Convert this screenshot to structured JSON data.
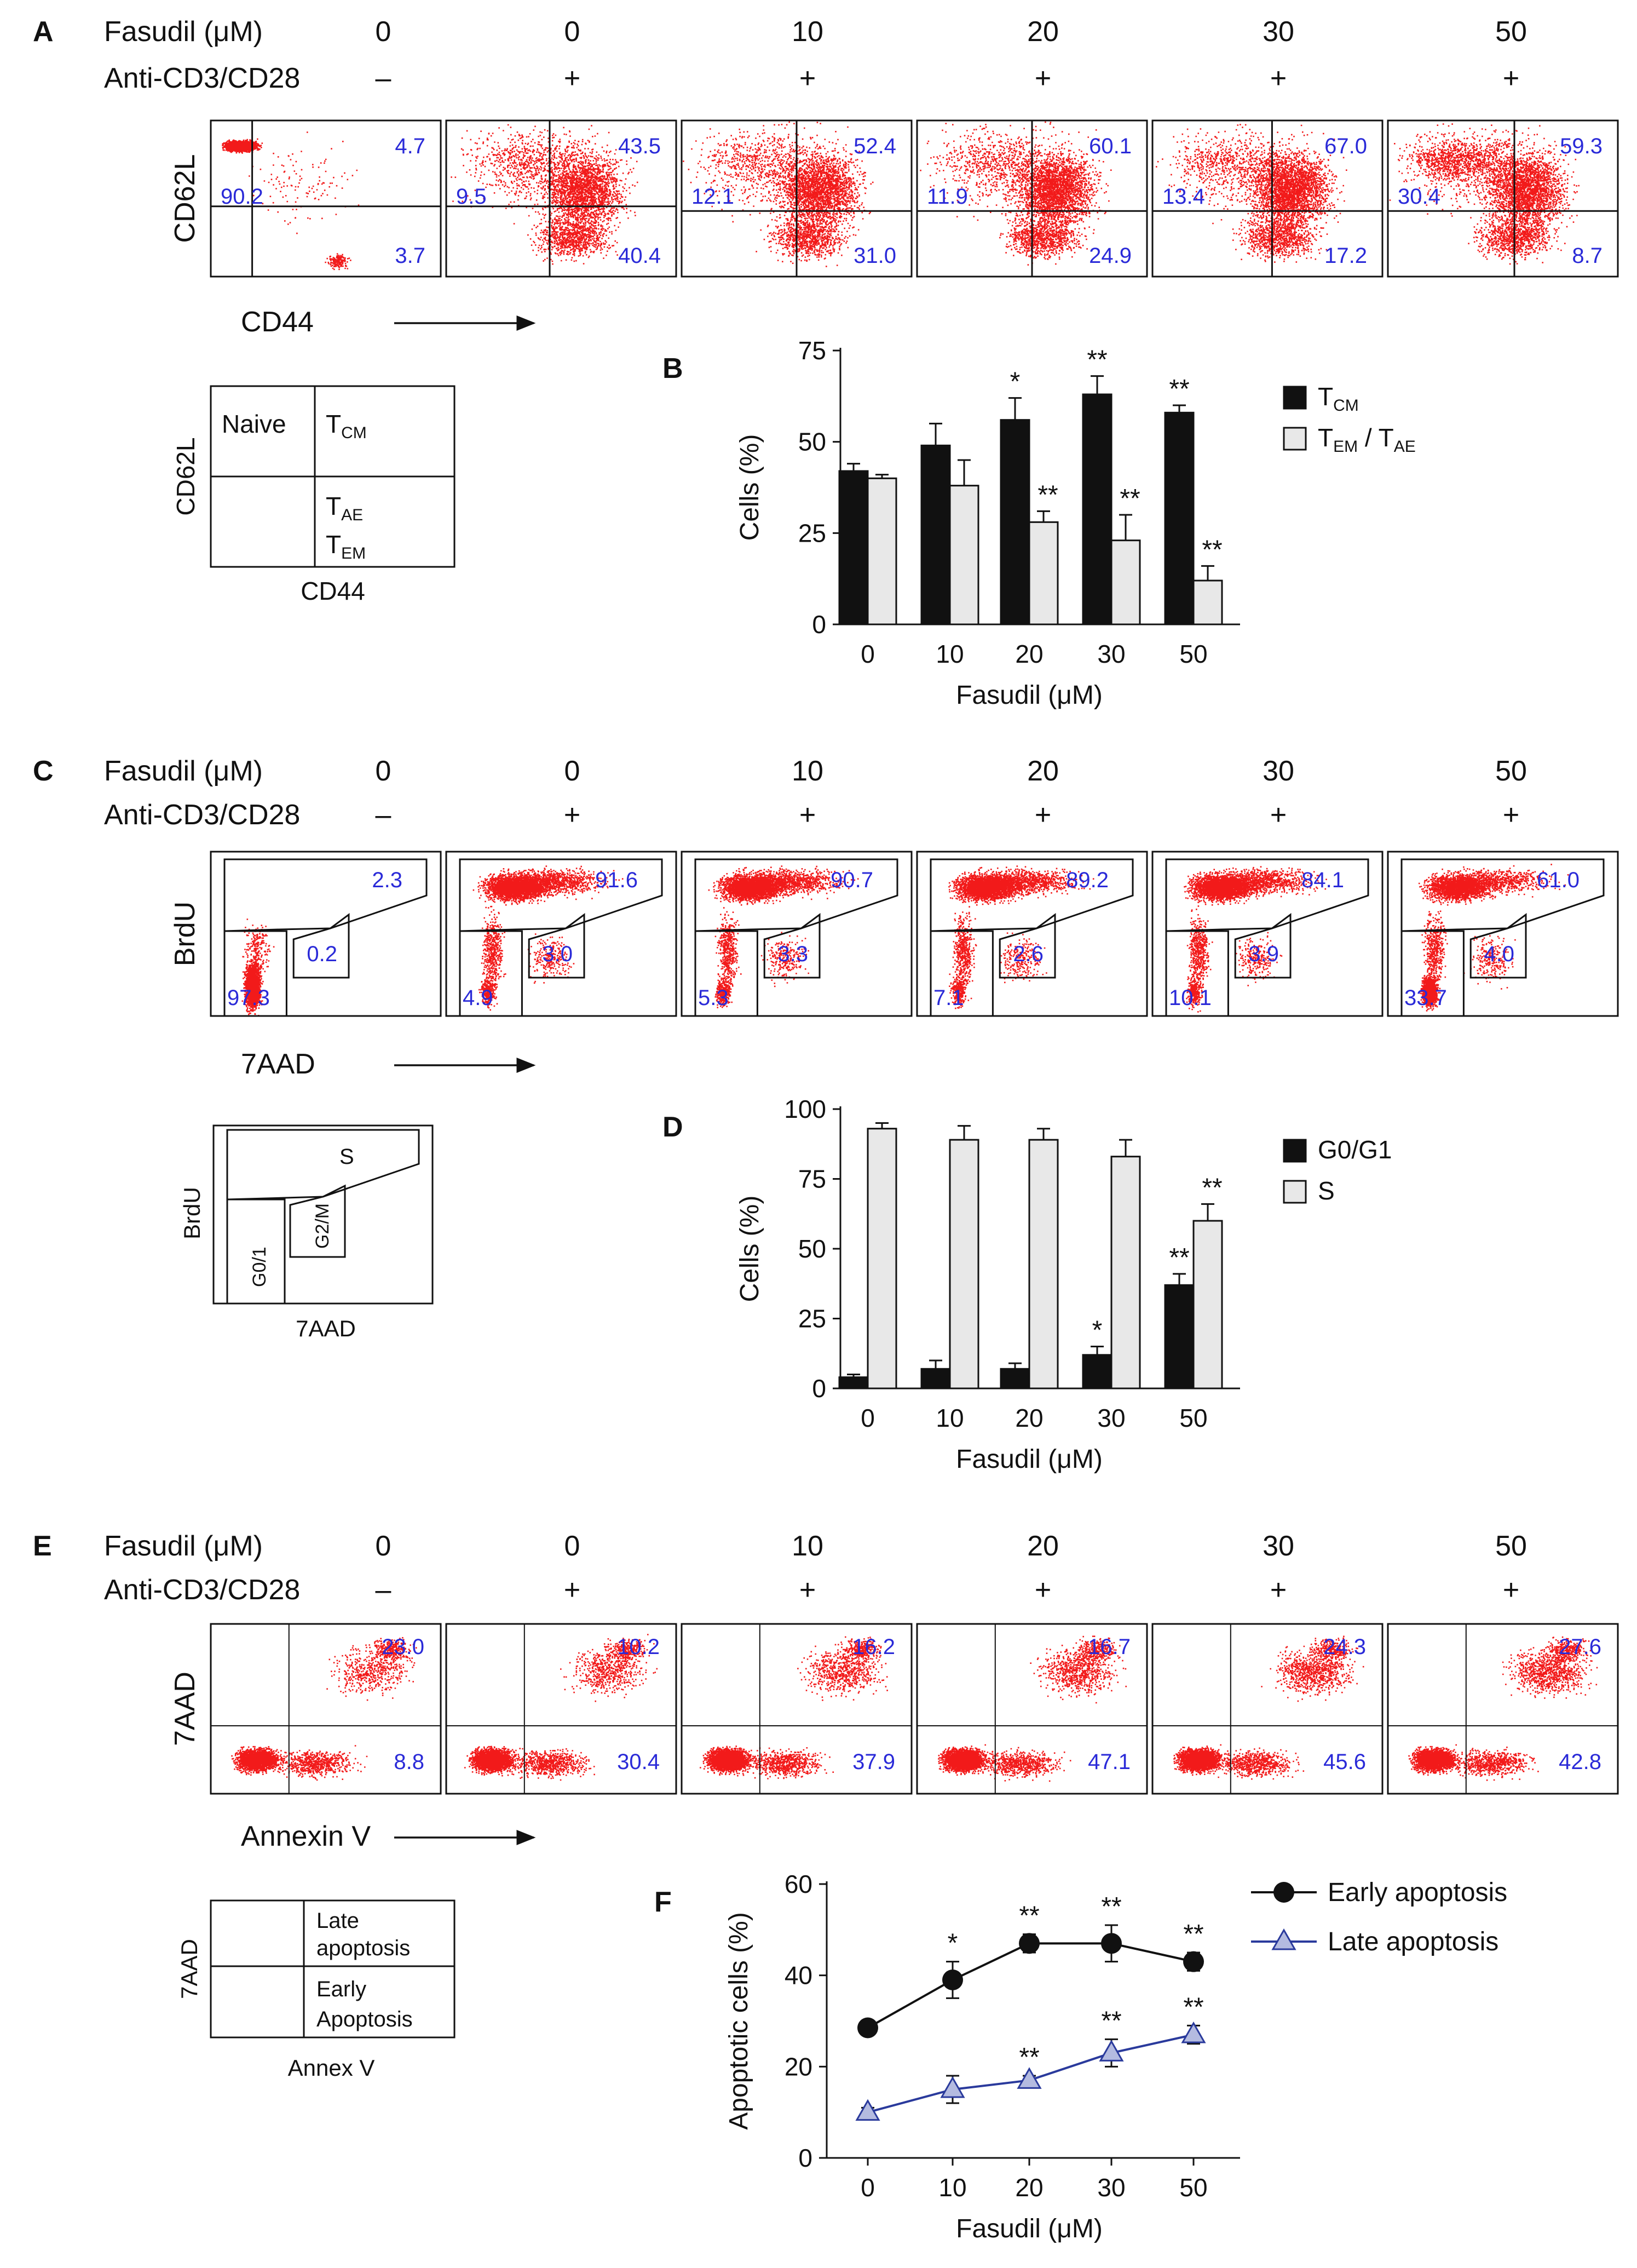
{
  "colors": {
    "dot": "#f21a1a",
    "value_text": "#2a2ad8",
    "bar_dark": "#111111",
    "bar_light": "#e8e8e8",
    "late_marker": "#b4bbe0",
    "late_line": "#2a3a9c",
    "text": "#111111"
  },
  "panels": {
    "A": {
      "letter": "A",
      "row_label_1": "Fasudil (μM)",
      "row_label_2": "Anti-CD3/CD28",
      "conc_values": [
        "0",
        "0",
        "10",
        "20",
        "30",
        "50"
      ],
      "stim_values": [
        "–",
        "+",
        "+",
        "+",
        "+",
        "+"
      ],
      "y_axis_label": "CD62L",
      "x_axis_label": "CD44",
      "plots": [
        {
          "upper_left": "90.2",
          "upper_right": "4.7",
          "lower_right": "3.7"
        },
        {
          "upper_left": "9.5",
          "upper_right": "43.5",
          "lower_right": "40.4"
        },
        {
          "upper_left": "12.1",
          "upper_right": "52.4",
          "lower_right": "31.0"
        },
        {
          "upper_left": "11.9",
          "upper_right": "60.1",
          "lower_right": "24.9"
        },
        {
          "upper_left": "13.4",
          "upper_right": "67.0",
          "lower_right": "17.2"
        },
        {
          "upper_left": "30.4",
          "upper_right": "59.3",
          "lower_right": "8.7"
        }
      ],
      "legend": {
        "y_label": "CD62L",
        "x_label": "CD44",
        "naive": "Naive",
        "tcm": "T",
        "tcm_sub": "CM",
        "tae": "T",
        "tae_sub": "AE",
        "tem": "T",
        "tem_sub": "EM"
      }
    },
    "C": {
      "letter": "C",
      "row_label_1": "Fasudil (μM)",
      "row_label_2": "Anti-CD3/CD28",
      "conc_values": [
        "0",
        "0",
        "10",
        "20",
        "30",
        "50"
      ],
      "stim_values": [
        "–",
        "+",
        "+",
        "+",
        "+",
        "+"
      ],
      "y_axis_label": "BrdU",
      "x_axis_label": "7AAD",
      "plots": [
        {
          "s": "2.3",
          "g2m": "0.2",
          "g01": "97.3"
        },
        {
          "s": "91.6",
          "g2m": "3.0",
          "g01": "4.9"
        },
        {
          "s": "90.7",
          "g2m": "3.3",
          "g01": "5.3"
        },
        {
          "s": "89.2",
          "g2m": "2.6",
          "g01": "7.1"
        },
        {
          "s": "84.1",
          "g2m": "3.9",
          "g01": "10.1"
        },
        {
          "s": "61.0",
          "g2m": "4.0",
          "g01": "33.7"
        }
      ],
      "legend": {
        "y_label": "BrdU",
        "x_label": "7AAD",
        "s": "S",
        "g01": "G0/1",
        "g2m": "G2/M"
      }
    },
    "E": {
      "letter": "E",
      "row_label_1": "Fasudil (μM)",
      "row_label_2": "Anti-CD3/CD28",
      "conc_values": [
        "0",
        "0",
        "10",
        "20",
        "30",
        "50"
      ],
      "stim_values": [
        "–",
        "+",
        "+",
        "+",
        "+",
        "+"
      ],
      "y_axis_label": "7AAD",
      "x_axis_label": "Annexin V",
      "plots": [
        {
          "upper_right": "23.0",
          "lower_right": "8.8"
        },
        {
          "upper_right": "10.2",
          "lower_right": "30.4"
        },
        {
          "upper_right": "16.2",
          "lower_right": "37.9"
        },
        {
          "upper_right": "16.7",
          "lower_right": "47.1"
        },
        {
          "upper_right": "24.3",
          "lower_right": "45.6"
        },
        {
          "upper_right": "27.6",
          "lower_right": "42.8"
        }
      ],
      "legend": {
        "y_label": "7AAD",
        "x_label": "Annex V",
        "late_1": "Late",
        "late_2": "apoptosis",
        "early_1": "Early",
        "early_2": "Apoptosis"
      }
    }
  },
  "chart_data": [
    {
      "id": "B",
      "type": "bar",
      "letter": "B",
      "categories": [
        "0",
        "10",
        "20",
        "30",
        "50"
      ],
      "series": [
        {
          "name": "T_CM",
          "label_main": "T",
          "label_sub": "CM",
          "values": [
            42,
            49,
            56,
            63,
            58
          ],
          "errors": [
            2,
            6,
            6,
            5,
            2
          ],
          "significance": [
            "",
            "",
            "*",
            "**",
            "**"
          ]
        },
        {
          "name": "T_EM / T_AE",
          "label_main": "T",
          "label_sub": "EM",
          "label_mid": " / T",
          "label_sub2": "AE",
          "values": [
            40,
            38,
            28,
            23,
            12
          ],
          "errors": [
            1,
            7,
            3,
            7,
            4
          ],
          "significance": [
            "",
            "",
            "**",
            "**",
            "**"
          ]
        }
      ],
      "ylabel": "Cells (%)",
      "xlabel": "Fasudil (μM)",
      "ylim": [
        0,
        75
      ],
      "yticks": [
        "0",
        "25",
        "50",
        "75"
      ],
      "legend_position": "right"
    },
    {
      "id": "D",
      "type": "bar",
      "letter": "D",
      "categories": [
        "0",
        "10",
        "20",
        "30",
        "50"
      ],
      "series": [
        {
          "name": "G0/G1",
          "label_main": "G0/G1",
          "values": [
            4,
            7,
            7,
            12,
            37
          ],
          "errors": [
            1,
            3,
            2,
            3,
            4
          ],
          "significance": [
            "",
            "",
            "",
            "*",
            "**"
          ]
        },
        {
          "name": "S",
          "label_main": "S",
          "values": [
            93,
            89,
            89,
            83,
            60
          ],
          "errors": [
            2,
            5,
            4,
            6,
            6
          ],
          "significance": [
            "",
            "",
            "",
            "",
            "**"
          ]
        }
      ],
      "ylabel": "Cells (%)",
      "xlabel": "Fasudil (μM)",
      "ylim": [
        0,
        100
      ],
      "yticks": [
        "0",
        "25",
        "50",
        "75",
        "100"
      ],
      "legend_position": "right"
    },
    {
      "id": "F",
      "type": "line",
      "letter": "F",
      "categories": [
        "0",
        "10",
        "20",
        "30",
        "50"
      ],
      "series": [
        {
          "name": "Early apoptosis",
          "label_main": "Early apoptosis",
          "marker": "circle",
          "values": [
            28.5,
            39,
            47,
            47,
            43
          ],
          "errors": [
            1,
            4,
            2,
            4,
            2
          ],
          "significance": [
            "",
            "*",
            "**",
            "**",
            "**"
          ]
        },
        {
          "name": "Late apoptosis",
          "label_main": "Late apoptosis",
          "marker": "triangle",
          "values": [
            10,
            15,
            17,
            23,
            27
          ],
          "errors": [
            1,
            3,
            1,
            3,
            2
          ],
          "significance": [
            "",
            "",
            "**",
            "**",
            "**"
          ]
        }
      ],
      "ylabel": "Apoptotic cells (%)",
      "xlabel": "Fasudil (μM)",
      "ylim": [
        0,
        60
      ],
      "yticks": [
        "0",
        "20",
        "40",
        "60"
      ],
      "legend_position": "top-right"
    }
  ]
}
